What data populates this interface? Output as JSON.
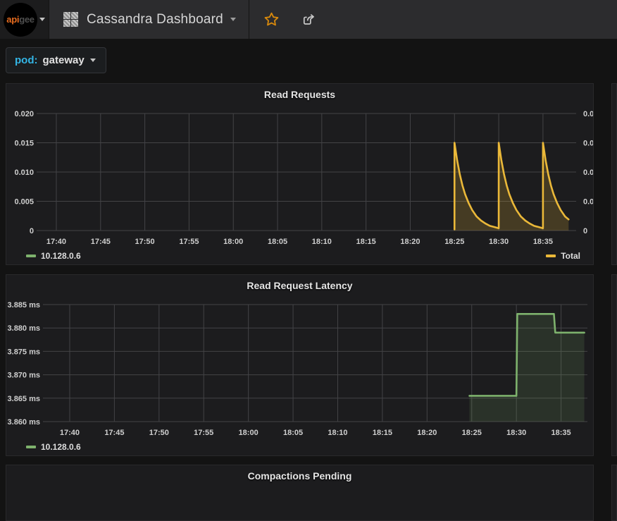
{
  "navbar": {
    "logo": {
      "brand_api": "api",
      "brand_gee": "gee",
      "icon": "apigee-logo"
    },
    "dashboard_title": "Cassandra Dashboard",
    "icons": {
      "menu": "apps-grid-icon",
      "favorite": "star-icon",
      "share": "share-export-icon",
      "caret": "caret-down-icon"
    },
    "accent_star_color": "#d8890c"
  },
  "template_vars": {
    "pod_label": "pod:",
    "pod_value": "gateway",
    "label_color": "#33b5e5"
  },
  "chart_data": [
    {
      "type": "area",
      "title": "Read Requests",
      "x_unit": "time (minutes after 17:00)",
      "xlim": [
        38.25,
        98.75
      ],
      "ylim": [
        0,
        0.02
      ],
      "grid": true,
      "right_axis": true,
      "x_ticks": [
        {
          "t": 40,
          "label": "17:40"
        },
        {
          "t": 45,
          "label": "17:45"
        },
        {
          "t": 50,
          "label": "17:50"
        },
        {
          "t": 55,
          "label": "17:55"
        },
        {
          "t": 60,
          "label": "18:00"
        },
        {
          "t": 65,
          "label": "18:05"
        },
        {
          "t": 70,
          "label": "18:10"
        },
        {
          "t": 75,
          "label": "18:15"
        },
        {
          "t": 80,
          "label": "18:20"
        },
        {
          "t": 85,
          "label": "18:25"
        },
        {
          "t": 90,
          "label": "18:30"
        },
        {
          "t": 95,
          "label": "18:35"
        }
      ],
      "y_ticks": [
        {
          "v": 0,
          "label": "0"
        },
        {
          "v": 0.005,
          "label": "0.005"
        },
        {
          "v": 0.01,
          "label": "0.010"
        },
        {
          "v": 0.015,
          "label": "0.015"
        },
        {
          "v": 0.02,
          "label": "0.020"
        }
      ],
      "legend_left": {
        "label": "10.128.0.6",
        "color": "#7EB26D"
      },
      "legend_right": {
        "label": "Total",
        "color": "#EAB839"
      },
      "series": [
        {
          "name": "Total",
          "color": "#EAB839",
          "fill_opacity": 0.2,
          "points": [
            [
              85,
              0.0002
            ],
            [
              85,
              0.015
            ],
            [
              85.3,
              0.012
            ],
            [
              85.6,
              0.0096
            ],
            [
              85.9,
              0.0077
            ],
            [
              86.2,
              0.0062
            ],
            [
              86.6,
              0.0047
            ],
            [
              87,
              0.0035
            ],
            [
              87.5,
              0.0024
            ],
            [
              88,
              0.0017
            ],
            [
              88.5,
              0.0012
            ],
            [
              89,
              0.0008
            ],
            [
              89.5,
              0.0006
            ],
            [
              89.95,
              0.0004
            ],
            [
              90,
              0.0004
            ],
            [
              90,
              0.015
            ],
            [
              90.3,
              0.012
            ],
            [
              90.6,
              0.0096
            ],
            [
              90.9,
              0.0077
            ],
            [
              91.2,
              0.0062
            ],
            [
              91.6,
              0.0047
            ],
            [
              92,
              0.0035
            ],
            [
              92.5,
              0.0024
            ],
            [
              93,
              0.0017
            ],
            [
              93.5,
              0.0012
            ],
            [
              94,
              0.0008
            ],
            [
              94.5,
              0.0006
            ],
            [
              94.95,
              0.0004
            ],
            [
              95,
              0.0004
            ],
            [
              95,
              0.015
            ],
            [
              95.3,
              0.012
            ],
            [
              95.6,
              0.0096
            ],
            [
              95.9,
              0.0077
            ],
            [
              96.2,
              0.0062
            ],
            [
              96.6,
              0.0047
            ],
            [
              97,
              0.0035
            ],
            [
              97.5,
              0.0024
            ],
            [
              97.9,
              0.0019
            ]
          ]
        }
      ]
    },
    {
      "type": "area",
      "title": "Read Request Latency",
      "x_unit": "time (minutes after 17:00)",
      "xlim": [
        37.48,
        97.95
      ],
      "ylim": [
        3.86,
        3.885
      ],
      "grid": true,
      "right_axis": false,
      "x_ticks": [
        {
          "t": 40,
          "label": "17:40"
        },
        {
          "t": 45,
          "label": "17:45"
        },
        {
          "t": 50,
          "label": "17:50"
        },
        {
          "t": 55,
          "label": "17:55"
        },
        {
          "t": 60,
          "label": "18:00"
        },
        {
          "t": 65,
          "label": "18:05"
        },
        {
          "t": 70,
          "label": "18:10"
        },
        {
          "t": 75,
          "label": "18:15"
        },
        {
          "t": 80,
          "label": "18:20"
        },
        {
          "t": 85,
          "label": "18:25"
        },
        {
          "t": 90,
          "label": "18:30"
        },
        {
          "t": 95,
          "label": "18:35"
        }
      ],
      "y_ticks": [
        {
          "v": 3.86,
          "label": "3.860 ms"
        },
        {
          "v": 3.865,
          "label": "3.865 ms"
        },
        {
          "v": 3.87,
          "label": "3.870 ms"
        },
        {
          "v": 3.875,
          "label": "3.875 ms"
        },
        {
          "v": 3.88,
          "label": "3.880 ms"
        },
        {
          "v": 3.885,
          "label": "3.885 ms"
        }
      ],
      "legend_left": {
        "label": "10.128.0.6",
        "color": "#7EB26D"
      },
      "series": [
        {
          "name": "10.128.0.6",
          "color": "#7EB26D",
          "fill_opacity": 0.15,
          "points": [
            [
              84.75,
              3.8655
            ],
            [
              90,
              3.8655
            ],
            [
              90.1,
              3.883
            ],
            [
              94.2,
              3.883
            ],
            [
              94.35,
              3.879
            ],
            [
              97.6,
              3.879
            ]
          ]
        }
      ]
    },
    {
      "type": "area",
      "title": "Compactions Pending",
      "partial": "cut off at bottom of viewport"
    }
  ]
}
